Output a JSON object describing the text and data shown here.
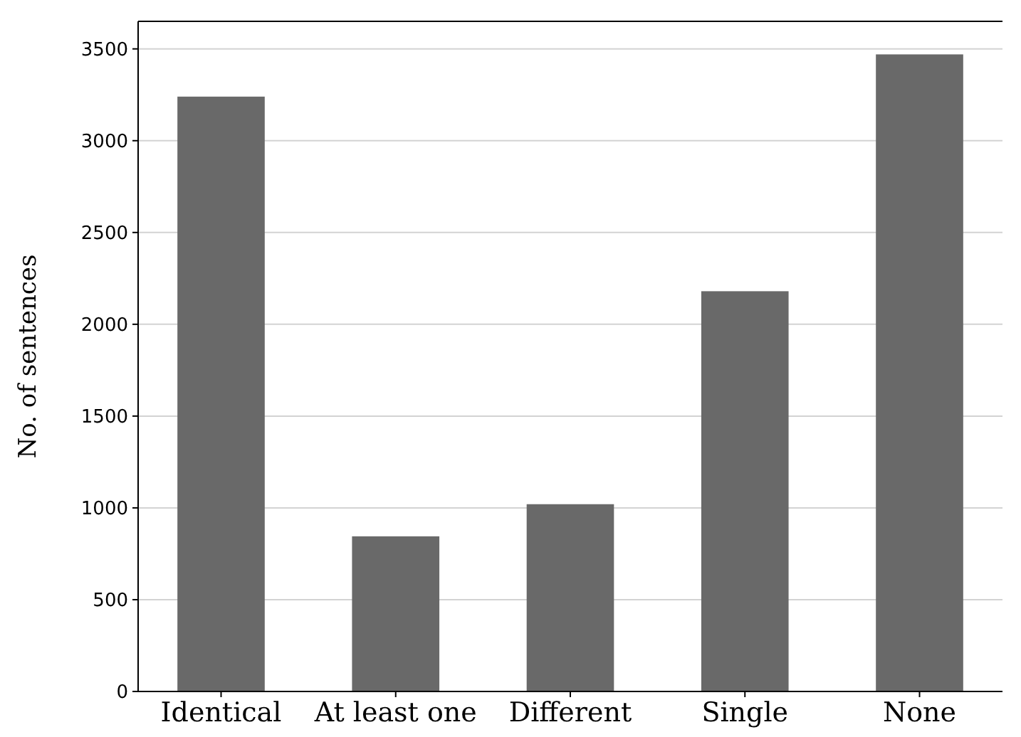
{
  "chart_data": {
    "type": "bar",
    "ylabel": "No. of sentences",
    "categories": [
      "Identical",
      "At least one",
      "Different",
      "Single",
      "None"
    ],
    "values": [
      3240,
      845,
      1020,
      2180,
      3470
    ],
    "color": "#696969",
    "ylim": [
      0,
      3650
    ],
    "yticks": [
      0,
      500,
      1000,
      1500,
      2000,
      2500,
      3000,
      3500
    ],
    "grid": "y"
  }
}
